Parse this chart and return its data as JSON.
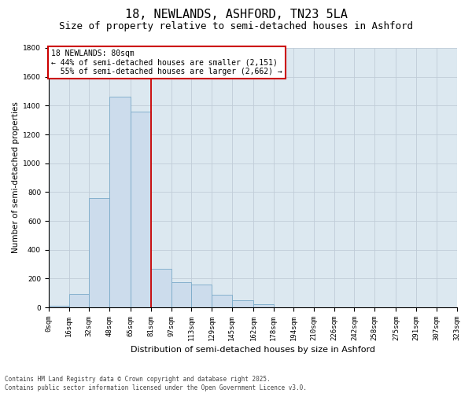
{
  "title1": "18, NEWLANDS, ASHFORD, TN23 5LA",
  "title2": "Size of property relative to semi-detached houses in Ashford",
  "xlabel": "Distribution of semi-detached houses by size in Ashford",
  "ylabel": "Number of semi-detached properties",
  "property_label": "18 NEWLANDS: 80sqm",
  "pct_smaller": 44,
  "n_smaller": 2151,
  "pct_larger": 55,
  "n_larger": 2662,
  "bin_labels": [
    "0sqm",
    "16sqm",
    "32sqm",
    "48sqm",
    "65sqm",
    "81sqm",
    "97sqm",
    "113sqm",
    "129sqm",
    "145sqm",
    "162sqm",
    "178sqm",
    "194sqm",
    "210sqm",
    "226sqm",
    "242sqm",
    "258sqm",
    "275sqm",
    "291sqm",
    "307sqm",
    "323sqm"
  ],
  "bin_edges": [
    0,
    16,
    32,
    48,
    65,
    81,
    97,
    113,
    129,
    145,
    162,
    178,
    194,
    210,
    226,
    242,
    258,
    275,
    291,
    307,
    323
  ],
  "bar_heights": [
    10,
    95,
    760,
    1460,
    1360,
    270,
    175,
    160,
    90,
    50,
    20,
    0,
    0,
    0,
    0,
    0,
    0,
    0,
    0,
    0
  ],
  "bar_color": "#ccdcec",
  "bar_edgecolor": "#7aaac8",
  "vline_color": "#cc0000",
  "vline_x": 81,
  "ylim": [
    0,
    1800
  ],
  "yticks": [
    0,
    200,
    400,
    600,
    800,
    1000,
    1200,
    1400,
    1600,
    1800
  ],
  "grid_color": "#c0ccd8",
  "background_color": "#dce8f0",
  "footer": "Contains HM Land Registry data © Crown copyright and database right 2025.\nContains public sector information licensed under the Open Government Licence v3.0.",
  "annotation_box_edgecolor": "#cc0000",
  "title1_fontsize": 11,
  "title2_fontsize": 9,
  "tick_fontsize": 6.5,
  "ylabel_fontsize": 7.5,
  "xlabel_fontsize": 8,
  "annotation_fontsize": 7,
  "footer_fontsize": 5.5
}
